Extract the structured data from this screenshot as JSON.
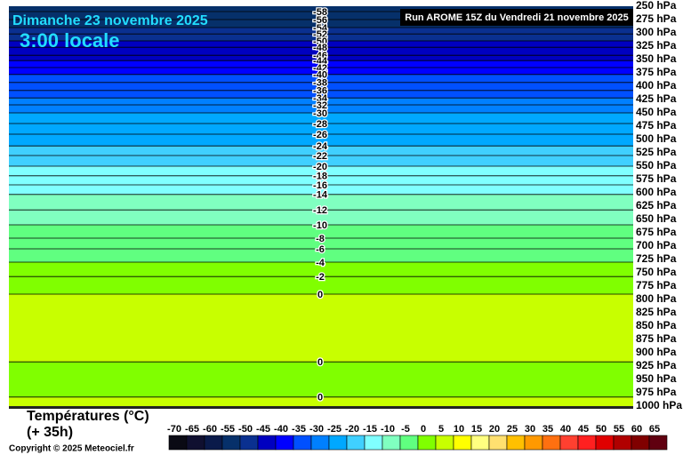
{
  "chart_data": {
    "type": "isotherm-profile",
    "title": "Dimanche 23 novembre 2025",
    "subtitle": "3:00 locale",
    "run_label": "Run AROME 15Z du Vendredi 21 novembre 2025",
    "legend_title": "Températures (°C)",
    "lead_time": "(+ 35h)",
    "copyright": "Copyright © 2025 Meteociel.fr",
    "ylim": [
      250,
      1000
    ],
    "yticks": [
      {
        "value": 250,
        "label": "250 hPa"
      },
      {
        "value": 275,
        "label": "275 hPa"
      },
      {
        "value": 300,
        "label": "300 hPa"
      },
      {
        "value": 325,
        "label": "325 hPa"
      },
      {
        "value": 350,
        "label": "350 hPa"
      },
      {
        "value": 375,
        "label": "375 hPa"
      },
      {
        "value": 400,
        "label": "400 hPa"
      },
      {
        "value": 425,
        "label": "425 hPa"
      },
      {
        "value": 450,
        "label": "450 hPa"
      },
      {
        "value": 475,
        "label": "475 hPa"
      },
      {
        "value": 500,
        "label": "500 hPa"
      },
      {
        "value": 525,
        "label": "525 hPa"
      },
      {
        "value": 550,
        "label": "550 hPa"
      },
      {
        "value": 575,
        "label": "575 hPa"
      },
      {
        "value": 600,
        "label": "600 hPa"
      },
      {
        "value": 625,
        "label": "625 hPa"
      },
      {
        "value": 650,
        "label": "650 hPa"
      },
      {
        "value": 675,
        "label": "675 hPa"
      },
      {
        "value": 700,
        "label": "700 hPa"
      },
      {
        "value": 725,
        "label": "725 hPa"
      },
      {
        "value": 750,
        "label": "750 hPa"
      },
      {
        "value": 775,
        "label": "775 hPa"
      },
      {
        "value": 800,
        "label": "800 hPa"
      },
      {
        "value": 825,
        "label": "825 hPa"
      },
      {
        "value": 850,
        "label": "850 hPa"
      },
      {
        "value": 875,
        "label": "875 hPa"
      },
      {
        "value": 900,
        "label": "900 hPa"
      },
      {
        "value": 925,
        "label": "925 hPa"
      },
      {
        "value": 950,
        "label": "950 hPa"
      },
      {
        "value": 975,
        "label": "975 hPa"
      },
      {
        "value": 1000,
        "label": "1000 hPa"
      }
    ],
    "isotherms": [
      {
        "value": -58,
        "pressure": 260
      },
      {
        "value": -56,
        "pressure": 275
      },
      {
        "value": -54,
        "pressure": 290
      },
      {
        "value": -52,
        "pressure": 302
      },
      {
        "value": -50,
        "pressure": 315
      },
      {
        "value": -48,
        "pressure": 327
      },
      {
        "value": -46,
        "pressure": 342
      },
      {
        "value": -44,
        "pressure": 352
      },
      {
        "value": -42,
        "pressure": 365
      },
      {
        "value": -40,
        "pressure": 378
      },
      {
        "value": -38,
        "pressure": 393
      },
      {
        "value": -36,
        "pressure": 408
      },
      {
        "value": -34,
        "pressure": 422
      },
      {
        "value": -32,
        "pressure": 435
      },
      {
        "value": -30,
        "pressure": 450
      },
      {
        "value": -28,
        "pressure": 470
      },
      {
        "value": -26,
        "pressure": 490
      },
      {
        "value": -24,
        "pressure": 512
      },
      {
        "value": -22,
        "pressure": 530
      },
      {
        "value": -20,
        "pressure": 550
      },
      {
        "value": -18,
        "pressure": 568
      },
      {
        "value": -16,
        "pressure": 585
      },
      {
        "value": -14,
        "pressure": 603
      },
      {
        "value": -12,
        "pressure": 632
      },
      {
        "value": -10,
        "pressure": 660
      },
      {
        "value": -8,
        "pressure": 685
      },
      {
        "value": -6,
        "pressure": 705
      },
      {
        "value": -4,
        "pressure": 730
      },
      {
        "value": -2,
        "pressure": 757
      },
      {
        "value": 0,
        "pressure": 790
      },
      {
        "value": 0,
        "pressure": 917
      },
      {
        "value": 0,
        "pressure": 983
      }
    ],
    "layers": [
      -59,
      -57,
      -55,
      -53,
      -51,
      -49,
      -47,
      -45,
      -43,
      -41,
      -39,
      -37,
      -35,
      -33,
      -31,
      -29,
      -27,
      -25,
      -23,
      -21,
      -19,
      -17,
      -15,
      -13,
      -11,
      -9,
      -7,
      -5,
      -3,
      -1,
      1,
      -1,
      1
    ],
    "scale": [
      {
        "value": -70,
        "color": "#0a0a14"
      },
      {
        "value": -65,
        "color": "#101030"
      },
      {
        "value": -60,
        "color": "#0a1a4a"
      },
      {
        "value": -55,
        "color": "#06306a"
      },
      {
        "value": -50,
        "color": "#0a3090"
      },
      {
        "value": -45,
        "color": "#0000c0"
      },
      {
        "value": -40,
        "color": "#0000ff"
      },
      {
        "value": -35,
        "color": "#0050ff"
      },
      {
        "value": -30,
        "color": "#0080ff"
      },
      {
        "value": -25,
        "color": "#00a8ff"
      },
      {
        "value": -20,
        "color": "#40d0ff"
      },
      {
        "value": -15,
        "color": "#80ffff"
      },
      {
        "value": -10,
        "color": "#80ffc0"
      },
      {
        "value": -5,
        "color": "#60ff80"
      },
      {
        "value": 0,
        "color": "#80ff00"
      },
      {
        "value": 5,
        "color": "#c8ff00"
      },
      {
        "value": 10,
        "color": "#ffff00"
      },
      {
        "value": 15,
        "color": "#ffff80"
      },
      {
        "value": 20,
        "color": "#ffe070"
      },
      {
        "value": 25,
        "color": "#ffc000"
      },
      {
        "value": 30,
        "color": "#ff9900"
      },
      {
        "value": 35,
        "color": "#ff7010"
      },
      {
        "value": 40,
        "color": "#ff4030"
      },
      {
        "value": 45,
        "color": "#ff2020"
      },
      {
        "value": 50,
        "color": "#e00000"
      },
      {
        "value": 55,
        "color": "#b00000"
      },
      {
        "value": 60,
        "color": "#800000"
      },
      {
        "value": 65,
        "color": "#600010"
      }
    ]
  }
}
